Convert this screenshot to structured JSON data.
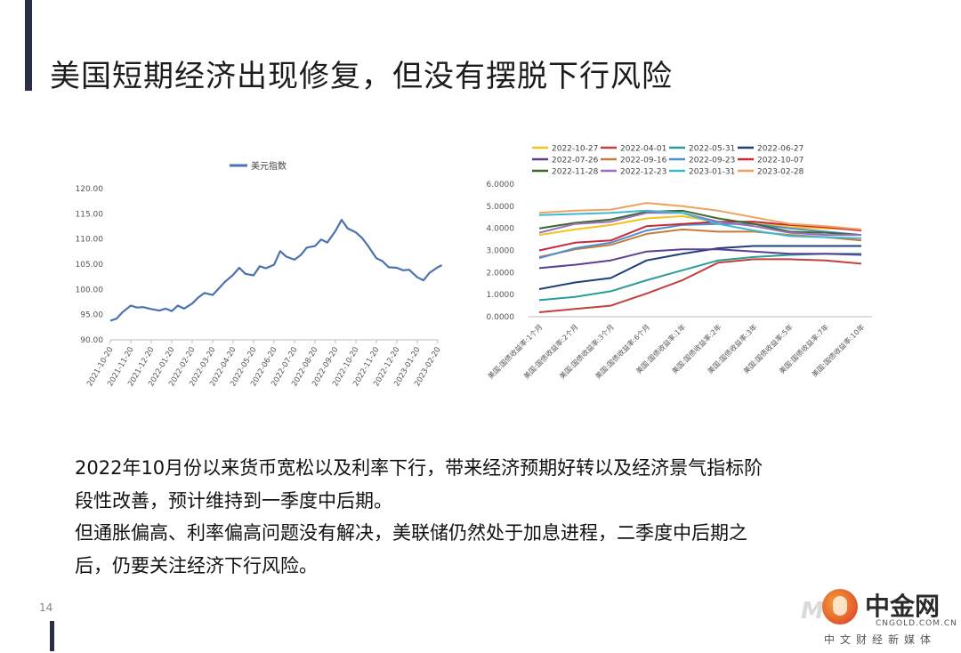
{
  "slide": {
    "title": "美国短期经济出现修复，但没有摆脱下行风险",
    "page_number": "14",
    "body_lines": [
      "2022年10月份以来货币宽松以及利率下行，带来经济预期好转以及经济景气指标阶",
      "段性改善，预计维持到一季度中后期。",
      "但通胀偏高、利率偏高问题没有解决，美联储仍然处于加息进程，二季度中后期之",
      "后，仍要关注经济下行风险。"
    ],
    "logo": {
      "ghost_text": "M",
      "name": "中金网",
      "url": "CNGOLD.COM.CN",
      "subtitle": "中文财经新媒体"
    }
  },
  "chart_data": [
    {
      "type": "line",
      "legend": [
        "美元指数"
      ],
      "legend_position": "top",
      "ylim": [
        90,
        120
      ],
      "yticks": [
        "120.00",
        "115.00",
        "110.00",
        "105.00",
        "100.00",
        "95.00",
        "90.00"
      ],
      "ytick_values": [
        120,
        115,
        110,
        105,
        100,
        95,
        90
      ],
      "xticks": [
        "2021-10-20",
        "2021-11-20",
        "2021-12-20",
        "2022-01-20",
        "2022-02-20",
        "2022-03-20",
        "2022-04-20",
        "2022-05-20",
        "2022-06-20",
        "2022-07-20",
        "2022-08-20",
        "2022-09-20",
        "2022-10-20",
        "2022-11-20",
        "2022-12-20",
        "2023-01-20",
        "2023-02-20"
      ],
      "series": [
        {
          "name": "美元指数",
          "color": "#4a72b0",
          "x_month_index": [
            0,
            0.3,
            0.6,
            1.0,
            1.3,
            1.6,
            2.0,
            2.4,
            2.7,
            3.0,
            3.3,
            3.6,
            4.0,
            4.3,
            4.6,
            5.0,
            5.3,
            5.6,
            6.0,
            6.3,
            6.6,
            7.0,
            7.3,
            7.6,
            8.0,
            8.3,
            8.6,
            9.0,
            9.3,
            9.6,
            10.0,
            10.3,
            10.6,
            11.0,
            11.3,
            11.6,
            12.0,
            12.3,
            12.6,
            13.0,
            13.3,
            13.6,
            14.0,
            14.3,
            14.6,
            15.0,
            15.3,
            15.6,
            16.0,
            16.2
          ],
          "values": [
            93.8,
            94.2,
            95.5,
            96.8,
            96.4,
            96.5,
            96.1,
            95.8,
            96.2,
            95.7,
            96.8,
            96.2,
            97.2,
            98.4,
            99.3,
            98.9,
            100.2,
            101.5,
            102.9,
            104.3,
            103.1,
            102.8,
            104.6,
            104.2,
            104.9,
            107.6,
            106.5,
            105.9,
            106.8,
            108.3,
            108.6,
            109.9,
            109.3,
            111.6,
            113.8,
            112.1,
            111.3,
            110.2,
            108.6,
            106.2,
            105.6,
            104.4,
            104.3,
            103.8,
            103.9,
            102.4,
            101.8,
            103.3,
            104.4,
            104.8
          ]
        }
      ]
    },
    {
      "type": "line",
      "legend_position": "top",
      "ylim": [
        0,
        6
      ],
      "yticks": [
        "6.0000",
        "5.0000",
        "4.0000",
        "3.0000",
        "2.0000",
        "1.0000",
        "0.0000"
      ],
      "ytick_values": [
        6,
        5,
        4,
        3,
        2,
        1,
        0
      ],
      "categories": [
        "美国:国债收益率:1个月",
        "美国:国债收益率:2个月",
        "美国:国债收益率:3个月",
        "美国:国债收益率:6个月",
        "美国:国债收益率:1年",
        "美国:国债收益率:2年",
        "美国:国债收益率:3年",
        "美国:国债收益率:5年",
        "美国:国债收益率:7年",
        "美国:国债收益率:10年"
      ],
      "series": [
        {
          "name": "2022-10-27",
          "color": "#f2c318",
          "values": [
            3.7,
            3.95,
            4.15,
            4.45,
            4.55,
            4.3,
            4.3,
            4.05,
            4.0,
            3.95
          ]
        },
        {
          "name": "2022-04-01",
          "color": "#c2403d",
          "values": [
            0.2,
            0.35,
            0.5,
            1.05,
            1.65,
            2.45,
            2.6,
            2.6,
            2.55,
            2.4
          ]
        },
        {
          "name": "2022-05-31",
          "color": "#2a9d98",
          "values": [
            0.75,
            0.9,
            1.15,
            1.65,
            2.1,
            2.55,
            2.7,
            2.8,
            2.85,
            2.85
          ]
        },
        {
          "name": "2022-06-27",
          "color": "#1f3f7a",
          "values": [
            1.25,
            1.55,
            1.75,
            2.55,
            2.85,
            3.1,
            3.2,
            3.2,
            3.2,
            3.2
          ]
        },
        {
          "name": "2022-07-26",
          "color": "#5a3f94",
          "values": [
            2.2,
            2.35,
            2.55,
            2.95,
            3.05,
            3.05,
            2.95,
            2.85,
            2.85,
            2.8
          ]
        },
        {
          "name": "2022-09-16",
          "color": "#c87a3a",
          "values": [
            2.7,
            3.05,
            3.25,
            3.75,
            3.95,
            3.85,
            3.85,
            3.7,
            3.6,
            3.45
          ]
        },
        {
          "name": "2022-09-23",
          "color": "#4a90d0",
          "values": [
            2.65,
            3.1,
            3.35,
            3.9,
            4.15,
            4.2,
            4.2,
            4.0,
            3.85,
            3.7
          ]
        },
        {
          "name": "2022-10-07",
          "color": "#c8283a",
          "values": [
            3.0,
            3.35,
            3.45,
            4.1,
            4.2,
            4.3,
            4.3,
            4.15,
            4.05,
            3.9
          ]
        },
        {
          "name": "2022-11-28",
          "color": "#3a6b2a",
          "values": [
            4.0,
            4.25,
            4.4,
            4.75,
            4.8,
            4.45,
            4.2,
            3.85,
            3.8,
            3.7
          ]
        },
        {
          "name": "2022-12-23",
          "color": "#9a6fc2",
          "values": [
            3.8,
            4.2,
            4.3,
            4.7,
            4.7,
            4.3,
            4.1,
            3.8,
            3.7,
            3.7
          ]
        },
        {
          "name": "2023-01-31",
          "color": "#3dbad0",
          "values": [
            4.6,
            4.65,
            4.7,
            4.8,
            4.7,
            4.2,
            3.9,
            3.65,
            3.6,
            3.55
          ]
        },
        {
          "name": "2023-02-28",
          "color": "#f0a060",
          "values": [
            4.7,
            4.8,
            4.85,
            5.15,
            5.0,
            4.8,
            4.5,
            4.2,
            4.1,
            3.95
          ]
        }
      ]
    }
  ]
}
